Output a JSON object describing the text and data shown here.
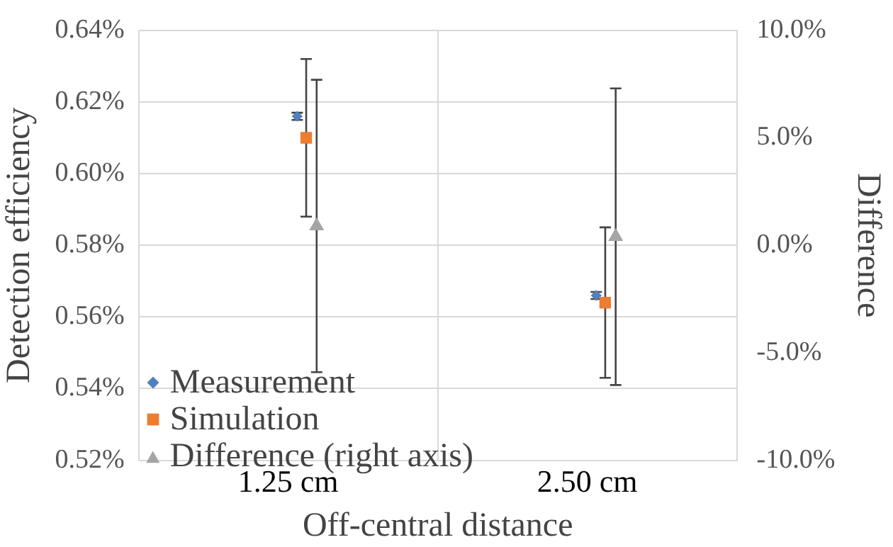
{
  "chart_data": {
    "type": "scatter",
    "xlabel": "Off-central distance",
    "ylabel": "Detection efficiency",
    "y2label": "Difference",
    "categories": [
      "1.25 cm",
      "2.50 cm"
    ],
    "series": [
      {
        "name": "Measurement",
        "color": "#4f81bd",
        "marker": "diamond",
        "values": [
          0.616,
          0.566
        ],
        "errors": [
          0.001,
          0.001
        ]
      },
      {
        "name": "Simulation",
        "color": "#ed7d31",
        "marker": "square",
        "values": [
          0.61,
          0.564
        ],
        "errors": [
          0.022,
          0.021
        ]
      },
      {
        "name": "Difference (right axis)",
        "color": "#a5a5a5",
        "marker": "triangle",
        "axis": "y2",
        "values": [
          0.9,
          0.4
        ],
        "errors": [
          6.8,
          6.9
        ]
      }
    ],
    "ylim": [
      0.52,
      0.64
    ],
    "yticks": [
      {
        "value": 0.52,
        "label": "0.52%"
      },
      {
        "value": 0.54,
        "label": "0.54%"
      },
      {
        "value": 0.56,
        "label": "0.56%"
      },
      {
        "value": 0.58,
        "label": "0.58%"
      },
      {
        "value": 0.6,
        "label": "0.60%"
      },
      {
        "value": 0.62,
        "label": "0.62%"
      },
      {
        "value": 0.64,
        "label": "0.64%"
      }
    ],
    "y2lim": [
      -10,
      10
    ],
    "y2ticks": [
      {
        "value": -10,
        "label": "-10.0%"
      },
      {
        "value": -5,
        "label": "-5.0%"
      },
      {
        "value": 0,
        "label": "0.0%"
      },
      {
        "value": 5,
        "label": "5.0%"
      },
      {
        "value": 10,
        "label": "10.0%"
      }
    ],
    "grid": true,
    "legend": "bottom left"
  }
}
